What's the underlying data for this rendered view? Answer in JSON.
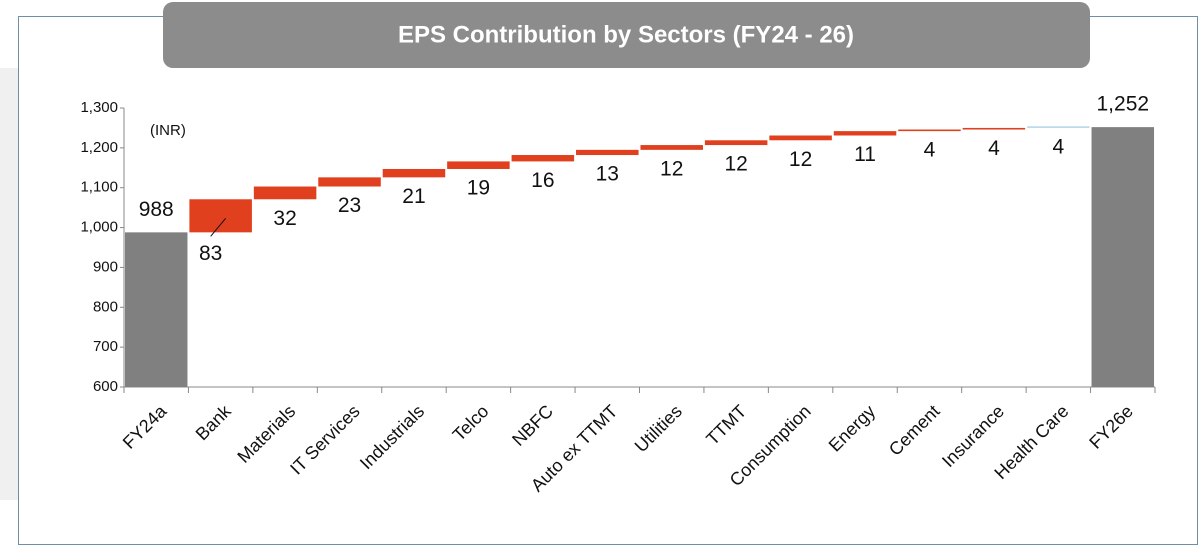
{
  "chart_data": {
    "type": "waterfall",
    "title": "EPS Contribution by Sectors (FY24 - 26)",
    "annotation": "(INR)",
    "categories": [
      "FY24a",
      "Bank",
      "Materials",
      "IT Services",
      "Industrials",
      "Telco",
      "NBFC",
      "Auto ex TTMT",
      "Utilities",
      "TTMT",
      "Consumption",
      "Energy",
      "Cement",
      "Insurance",
      "Health Care",
      "FY26e"
    ],
    "values": [
      988,
      83,
      32,
      23,
      21,
      19,
      16,
      13,
      12,
      12,
      12,
      11,
      4,
      4,
      4,
      1252
    ],
    "value_labels": [
      "988",
      "83",
      "32",
      "23",
      "21",
      "19",
      "16",
      "13",
      "12",
      "12",
      "12",
      "11",
      "4",
      "4",
      "4",
      "1,252"
    ],
    "measures": [
      "absolute",
      "relative",
      "relative",
      "relative",
      "relative",
      "relative",
      "relative",
      "relative",
      "relative",
      "relative",
      "relative",
      "relative",
      "relative",
      "relative",
      "relative",
      "absolute"
    ],
    "colors": [
      "#808080",
      "#e0401e",
      "#e0401e",
      "#e0401e",
      "#e0401e",
      "#e0401e",
      "#e0401e",
      "#e0401e",
      "#e0401e",
      "#e0401e",
      "#e0401e",
      "#e0401e",
      "#e0401e",
      "#e0401e",
      "#b9d5ea",
      "#808080"
    ],
    "ylim": [
      600,
      1300
    ],
    "yticks": [
      600,
      700,
      800,
      900,
      {
        "value": 1000,
        "label": "1,000"
      },
      {
        "value": 1100,
        "label": "1,100"
      },
      {
        "value": 1200,
        "label": "1,200"
      },
      {
        "value": 1300,
        "label": "1,300"
      }
    ],
    "grid": false
  }
}
